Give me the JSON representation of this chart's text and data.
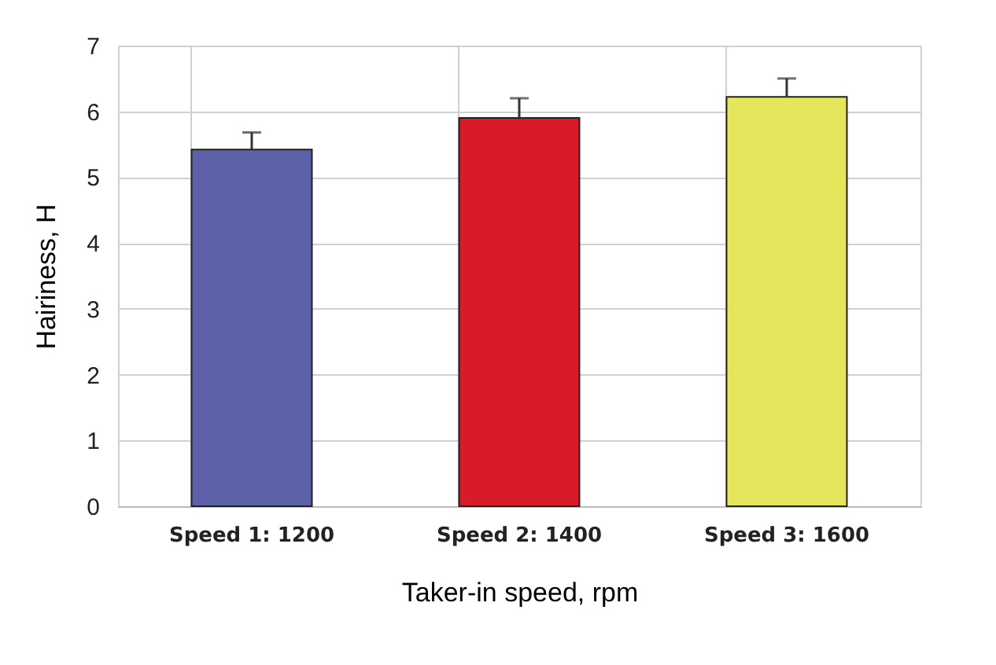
{
  "chart_data": {
    "type": "bar",
    "xlabel": "Taker-in speed, rpm",
    "ylabel": "Hairiness, H",
    "categories": [
      "Speed 1: 1200",
      "Speed 2: 1400",
      "Speed 3: 1600"
    ],
    "values": [
      5.42,
      5.9,
      6.22
    ],
    "colors": [
      "#5d61a8",
      "#d81b26",
      "#e6e65c"
    ],
    "errors": [
      [
        5.42,
        5.68
      ],
      [
        5.9,
        6.2
      ],
      [
        6.22,
        6.5
      ]
    ],
    "ylim": [
      0,
      7
    ],
    "yticks": [
      0,
      1,
      2,
      3,
      4,
      5,
      6,
      7
    ],
    "grid": true
  }
}
